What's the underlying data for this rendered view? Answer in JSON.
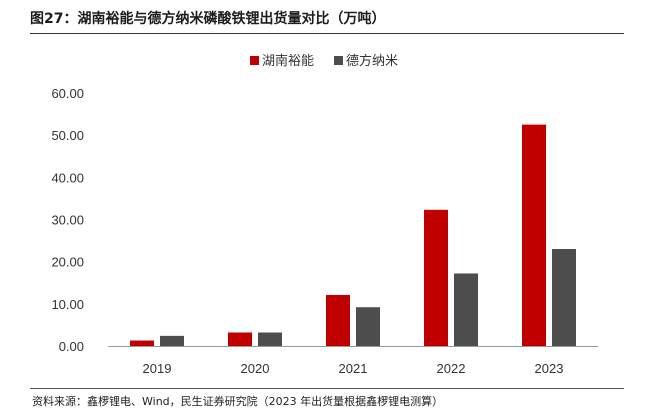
{
  "figure": {
    "title": "图27：湖南裕能与德方纳米磷酸铁锂出货量对比（万吨）",
    "source": "资料来源：鑫椤锂电、Wind，民生证券研究院（2023 年出货量根据鑫椤锂电测算）"
  },
  "colors": {
    "series_a": "#c00000",
    "series_b": "#4d4d4d",
    "axis": "#999999"
  },
  "chart_data": {
    "type": "bar",
    "title": "湖南裕能与德方纳米磷酸铁锂出货量对比（万吨）",
    "xlabel": "",
    "ylabel": "",
    "categories": [
      "2019",
      "2020",
      "2021",
      "2022",
      "2023"
    ],
    "series": [
      {
        "name": "湖南裕能",
        "values": [
          1.3,
          3.2,
          12.1,
          32.3,
          52.5
        ]
      },
      {
        "name": "德方纳米",
        "values": [
          2.4,
          3.2,
          9.2,
          17.2,
          23.0
        ]
      }
    ],
    "ylim": [
      0,
      60
    ],
    "yticks": [
      "0.00",
      "10.00",
      "20.00",
      "30.00",
      "40.00",
      "50.00",
      "60.00"
    ],
    "ytick_values": [
      0,
      10,
      20,
      30,
      40,
      50,
      60
    ],
    "grid": false,
    "legend": "top-center"
  }
}
